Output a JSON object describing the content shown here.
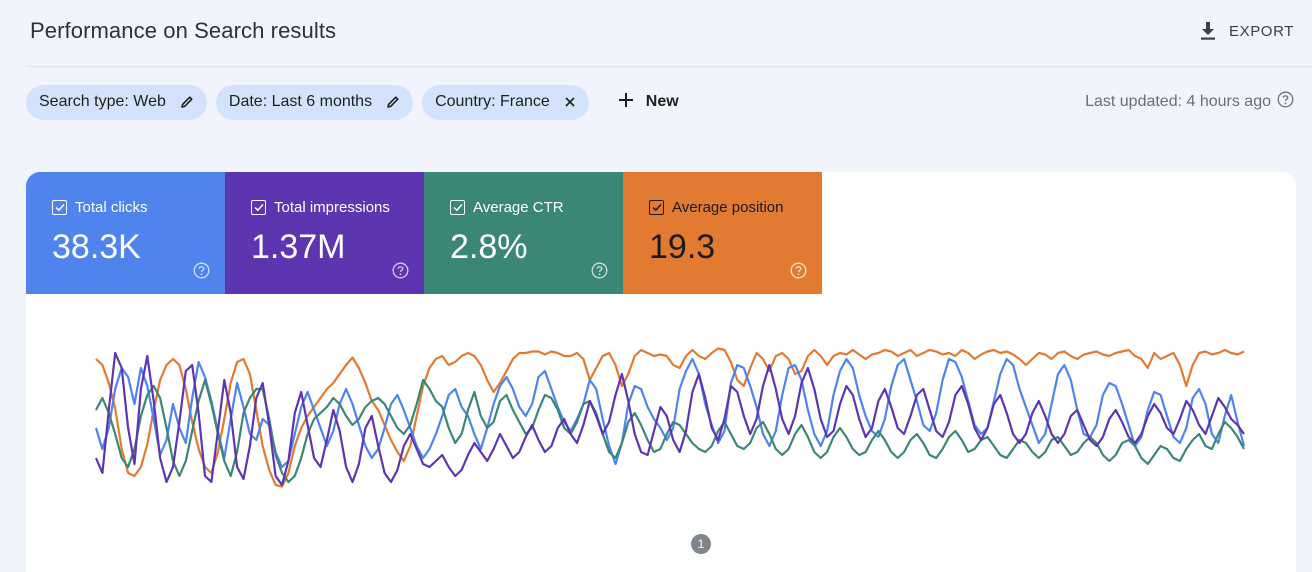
{
  "header": {
    "title": "Performance on Search results",
    "export_label": "EXPORT"
  },
  "filters": {
    "chips": [
      {
        "label": "Search type: Web",
        "action_icon": "pencil-icon"
      },
      {
        "label": "Date: Last 6 months",
        "action_icon": "pencil-icon"
      },
      {
        "label": "Country: France",
        "action_icon": "close-icon"
      }
    ],
    "new_label": "New",
    "last_updated": "Last updated: 4 hours ago"
  },
  "metrics": [
    {
      "label": "Total clicks",
      "value": "38.3K",
      "color": "#4e84ec",
      "checked": true
    },
    {
      "label": "Total impressions",
      "value": "1.37M",
      "color": "#5e35b1",
      "checked": true
    },
    {
      "label": "Average CTR",
      "value": "2.8%",
      "color": "#3a8777",
      "checked": true
    },
    {
      "label": "Average position",
      "value": "19.3",
      "color": "#e37a31",
      "checked": true
    }
  ],
  "annotation": {
    "count": "1"
  },
  "chart_data": {
    "type": "line",
    "xlabel": "",
    "ylabel": "",
    "axes_visible": false,
    "grid": false,
    "note": "Four overlaid metric lines, each independently scaled 0-1 (normalized plot height; higher = higher on chart). Approx. 180 daily points over last 6 months.",
    "series": [
      {
        "name": "Average position",
        "color": "#e37a31",
        "values": [
          0.9,
          0.86,
          0.74,
          0.57,
          0.3,
          0.14,
          0.12,
          0.18,
          0.33,
          0.56,
          0.76,
          0.86,
          0.9,
          0.86,
          0.7,
          0.48,
          0.3,
          0.18,
          0.14,
          0.28,
          0.5,
          0.74,
          0.88,
          0.9,
          0.8,
          0.56,
          0.32,
          0.16,
          0.06,
          0.05,
          0.14,
          0.32,
          0.44,
          0.52,
          0.58,
          0.64,
          0.7,
          0.74,
          0.8,
          0.86,
          0.91,
          0.84,
          0.74,
          0.62,
          0.56,
          0.46,
          0.36,
          0.28,
          0.22,
          0.32,
          0.52,
          0.72,
          0.84,
          0.9,
          0.92,
          0.86,
          0.88,
          0.92,
          0.94,
          0.92,
          0.86,
          0.76,
          0.68,
          0.74,
          0.82,
          0.9,
          0.94,
          0.94,
          0.95,
          0.95,
          0.93,
          0.95,
          0.94,
          0.92,
          0.92,
          0.94,
          0.9,
          0.76,
          0.84,
          0.92,
          0.94,
          0.86,
          0.72,
          0.8,
          0.92,
          0.96,
          0.94,
          0.92,
          0.93,
          0.92,
          0.86,
          0.84,
          0.92,
          0.96,
          0.92,
          0.9,
          0.94,
          0.97,
          0.96,
          0.88,
          0.76,
          0.72,
          0.84,
          0.94,
          0.9,
          0.82,
          0.92,
          0.94,
          0.9,
          0.8,
          0.82,
          0.92,
          0.96,
          0.92,
          0.86,
          0.92,
          0.94,
          0.93,
          0.96,
          0.93,
          0.9,
          0.93,
          0.94,
          0.96,
          0.95,
          0.92,
          0.94,
          0.96,
          0.92,
          0.94,
          0.96,
          0.95,
          0.93,
          0.94,
          0.92,
          0.96,
          0.94,
          0.9,
          0.93,
          0.95,
          0.96,
          0.94,
          0.95,
          0.93,
          0.9,
          0.86,
          0.9,
          0.94,
          0.93,
          0.9,
          0.94,
          0.95,
          0.92,
          0.9,
          0.93,
          0.94,
          0.95,
          0.93,
          0.92,
          0.94,
          0.95,
          0.96,
          0.92,
          0.9,
          0.84,
          0.94,
          0.9,
          0.92,
          0.94,
          0.86,
          0.72,
          0.86,
          0.94,
          0.95,
          0.93,
          0.94,
          0.96,
          0.94,
          0.93,
          0.95
        ]
      },
      {
        "name": "Total clicks",
        "color": "#4e84ec",
        "values": [
          0.44,
          0.3,
          0.44,
          0.7,
          0.84,
          0.78,
          0.6,
          0.84,
          0.72,
          0.5,
          0.26,
          0.36,
          0.6,
          0.44,
          0.34,
          0.64,
          0.88,
          0.78,
          0.62,
          0.42,
          0.24,
          0.5,
          0.74,
          0.58,
          0.4,
          0.36,
          0.5,
          0.46,
          0.28,
          0.18,
          0.22,
          0.4,
          0.58,
          0.68,
          0.56,
          0.44,
          0.32,
          0.42,
          0.6,
          0.7,
          0.6,
          0.46,
          0.32,
          0.24,
          0.3,
          0.44,
          0.6,
          0.66,
          0.56,
          0.44,
          0.32,
          0.24,
          0.3,
          0.4,
          0.52,
          0.66,
          0.7,
          0.58,
          0.52,
          0.4,
          0.3,
          0.44,
          0.6,
          0.72,
          0.78,
          0.7,
          0.58,
          0.52,
          0.6,
          0.78,
          0.82,
          0.7,
          0.58,
          0.48,
          0.42,
          0.5,
          0.6,
          0.76,
          0.7,
          0.5,
          0.32,
          0.2,
          0.34,
          0.6,
          0.72,
          0.7,
          0.58,
          0.5,
          0.44,
          0.36,
          0.44,
          0.7,
          0.82,
          0.9,
          0.8,
          0.6,
          0.46,
          0.34,
          0.42,
          0.74,
          0.86,
          0.84,
          0.72,
          0.58,
          0.4,
          0.32,
          0.42,
          0.66,
          0.84,
          0.86,
          0.76,
          0.56,
          0.4,
          0.32,
          0.42,
          0.66,
          0.82,
          0.9,
          0.84,
          0.66,
          0.52,
          0.42,
          0.38,
          0.5,
          0.72,
          0.86,
          0.9,
          0.76,
          0.62,
          0.46,
          0.42,
          0.54,
          0.76,
          0.9,
          0.88,
          0.78,
          0.62,
          0.46,
          0.4,
          0.44,
          0.62,
          0.8,
          0.9,
          0.86,
          0.7,
          0.58,
          0.46,
          0.34,
          0.4,
          0.6,
          0.8,
          0.86,
          0.76,
          0.56,
          0.4,
          0.38,
          0.46,
          0.66,
          0.74,
          0.72,
          0.6,
          0.46,
          0.32,
          0.38,
          0.56,
          0.68,
          0.66,
          0.52,
          0.38,
          0.34,
          0.44,
          0.64,
          0.7,
          0.6,
          0.4,
          0.34,
          0.52,
          0.66,
          0.48,
          0.32
        ]
      },
      {
        "name": "Average CTR",
        "color": "#3a8777",
        "values": [
          0.56,
          0.64,
          0.54,
          0.4,
          0.24,
          0.18,
          0.3,
          0.52,
          0.66,
          0.72,
          0.64,
          0.44,
          0.22,
          0.12,
          0.22,
          0.42,
          0.62,
          0.76,
          0.6,
          0.4,
          0.22,
          0.12,
          0.28,
          0.54,
          0.64,
          0.7,
          0.7,
          0.5,
          0.26,
          0.14,
          0.08,
          0.12,
          0.24,
          0.4,
          0.5,
          0.54,
          0.58,
          0.64,
          0.6,
          0.52,
          0.46,
          0.5,
          0.58,
          0.62,
          0.64,
          0.6,
          0.52,
          0.44,
          0.4,
          0.46,
          0.6,
          0.76,
          0.7,
          0.62,
          0.58,
          0.44,
          0.34,
          0.4,
          0.56,
          0.68,
          0.52,
          0.44,
          0.48,
          0.62,
          0.66,
          0.56,
          0.48,
          0.4,
          0.44,
          0.56,
          0.66,
          0.64,
          0.56,
          0.44,
          0.4,
          0.48,
          0.6,
          0.62,
          0.54,
          0.4,
          0.28,
          0.24,
          0.34,
          0.48,
          0.54,
          0.46,
          0.36,
          0.28,
          0.3,
          0.4,
          0.48,
          0.46,
          0.4,
          0.34,
          0.3,
          0.28,
          0.32,
          0.42,
          0.48,
          0.4,
          0.32,
          0.3,
          0.34,
          0.44,
          0.48,
          0.4,
          0.3,
          0.26,
          0.3,
          0.4,
          0.46,
          0.38,
          0.28,
          0.24,
          0.28,
          0.38,
          0.44,
          0.38,
          0.3,
          0.26,
          0.28,
          0.36,
          0.42,
          0.36,
          0.28,
          0.24,
          0.28,
          0.36,
          0.4,
          0.34,
          0.26,
          0.24,
          0.3,
          0.38,
          0.42,
          0.36,
          0.28,
          0.3,
          0.36,
          0.38,
          0.32,
          0.26,
          0.24,
          0.3,
          0.36,
          0.34,
          0.28,
          0.24,
          0.28,
          0.36,
          0.38,
          0.32,
          0.26,
          0.28,
          0.34,
          0.38,
          0.34,
          0.26,
          0.22,
          0.26,
          0.34,
          0.36,
          0.32,
          0.24,
          0.2,
          0.26,
          0.32,
          0.3,
          0.24,
          0.22,
          0.3,
          0.36,
          0.4,
          0.32,
          0.3,
          0.4,
          0.48,
          0.44,
          0.38,
          0.3
        ]
      },
      {
        "name": "Total impressions",
        "color": "#5e35b1",
        "values": [
          0.24,
          0.14,
          0.56,
          0.94,
          0.84,
          0.44,
          0.2,
          0.7,
          0.92,
          0.62,
          0.24,
          0.08,
          0.18,
          0.48,
          0.82,
          0.86,
          0.54,
          0.12,
          0.08,
          0.42,
          0.76,
          0.54,
          0.18,
          0.1,
          0.32,
          0.64,
          0.74,
          0.46,
          0.12,
          0.06,
          0.22,
          0.54,
          0.68,
          0.46,
          0.24,
          0.18,
          0.36,
          0.56,
          0.42,
          0.18,
          0.08,
          0.2,
          0.44,
          0.52,
          0.32,
          0.14,
          0.08,
          0.16,
          0.32,
          0.4,
          0.3,
          0.2,
          0.18,
          0.22,
          0.26,
          0.18,
          0.12,
          0.16,
          0.26,
          0.34,
          0.28,
          0.22,
          0.3,
          0.4,
          0.32,
          0.24,
          0.28,
          0.38,
          0.46,
          0.36,
          0.28,
          0.32,
          0.44,
          0.5,
          0.4,
          0.34,
          0.46,
          0.62,
          0.52,
          0.4,
          0.48,
          0.66,
          0.8,
          0.62,
          0.4,
          0.28,
          0.26,
          0.42,
          0.58,
          0.52,
          0.36,
          0.28,
          0.42,
          0.68,
          0.8,
          0.64,
          0.44,
          0.36,
          0.5,
          0.72,
          0.68,
          0.52,
          0.4,
          0.5,
          0.72,
          0.86,
          0.7,
          0.5,
          0.4,
          0.52,
          0.74,
          0.84,
          0.7,
          0.5,
          0.38,
          0.42,
          0.6,
          0.72,
          0.66,
          0.5,
          0.38,
          0.44,
          0.62,
          0.7,
          0.58,
          0.44,
          0.4,
          0.52,
          0.66,
          0.7,
          0.56,
          0.42,
          0.38,
          0.48,
          0.66,
          0.72,
          0.6,
          0.44,
          0.36,
          0.44,
          0.6,
          0.66,
          0.54,
          0.4,
          0.34,
          0.4,
          0.54,
          0.62,
          0.52,
          0.4,
          0.34,
          0.4,
          0.52,
          0.56,
          0.46,
          0.36,
          0.32,
          0.38,
          0.5,
          0.56,
          0.48,
          0.38,
          0.34,
          0.4,
          0.52,
          0.6,
          0.54,
          0.44,
          0.4,
          0.5,
          0.62,
          0.56,
          0.46,
          0.4,
          0.52,
          0.64,
          0.58,
          0.5,
          0.46,
          0.4
        ]
      }
    ]
  }
}
